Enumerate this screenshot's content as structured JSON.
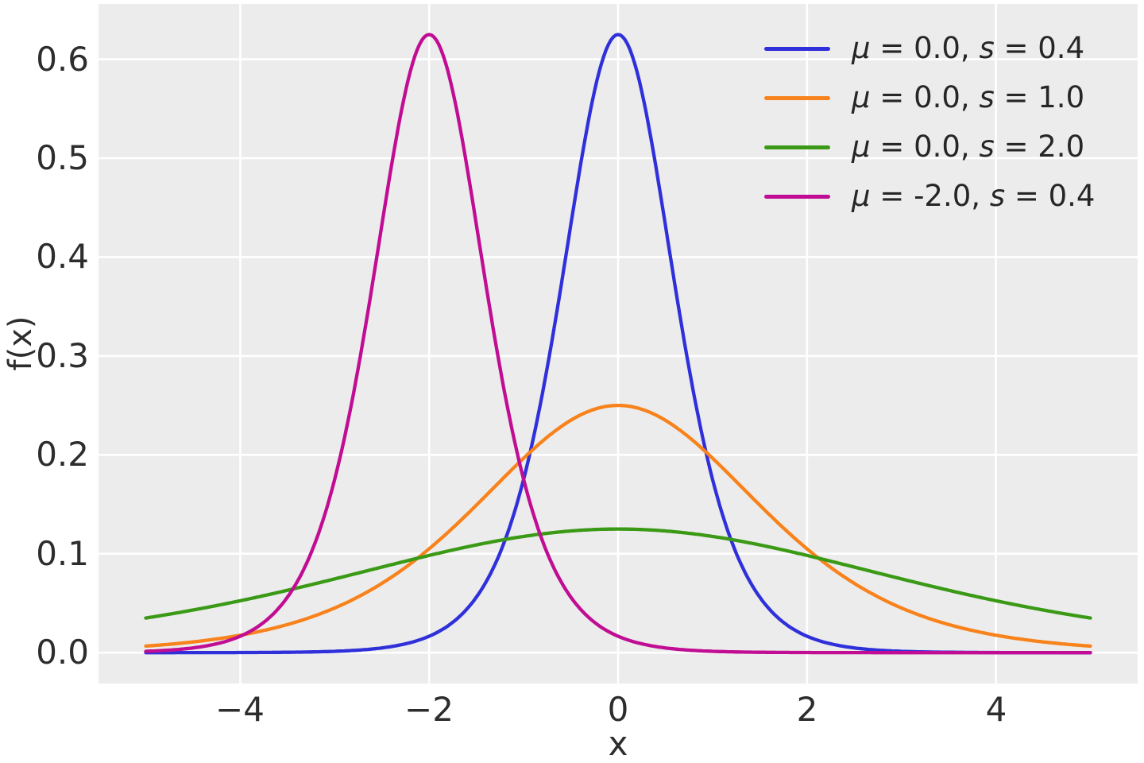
{
  "figure": {
    "background": "#ffffff",
    "axes_background": "#ececec",
    "grid_color": "#ffffff",
    "text_color": "#2d2d2d"
  },
  "chart_data": {
    "type": "line",
    "curve_family": "logistic-distribution-pdf",
    "title": "",
    "xlabel": "x",
    "ylabel": "f(x)",
    "xlim": [
      -5.5,
      5.5
    ],
    "ylim": [
      -0.0312,
      0.6559
    ],
    "x_sample_range": [
      -5,
      5
    ],
    "grid": true,
    "legend_position": "upper right",
    "xticks": [
      {
        "value": -4,
        "label": "−4"
      },
      {
        "value": -2,
        "label": "−2"
      },
      {
        "value": 0,
        "label": "0"
      },
      {
        "value": 2,
        "label": "2"
      },
      {
        "value": 4,
        "label": "4"
      }
    ],
    "yticks": [
      {
        "value": 0.0,
        "label": "0.0"
      },
      {
        "value": 0.1,
        "label": "0.1"
      },
      {
        "value": 0.2,
        "label": "0.2"
      },
      {
        "value": 0.3,
        "label": "0.3"
      },
      {
        "value": 0.4,
        "label": "0.4"
      },
      {
        "value": 0.5,
        "label": "0.5"
      },
      {
        "value": 0.6,
        "label": "0.6"
      }
    ],
    "series": [
      {
        "label": "μ = 0.0, s = 0.4",
        "mu": 0.0,
        "s": 0.4,
        "peak_x": 0.0,
        "peak_y": 0.625,
        "color": "#3030db"
      },
      {
        "label": "μ = 0.0, s = 1.0",
        "mu": 0.0,
        "s": 1.0,
        "peak_x": 0.0,
        "peak_y": 0.25,
        "color": "#f8821b"
      },
      {
        "label": "μ = 0.0, s = 2.0",
        "mu": 0.0,
        "s": 2.0,
        "peak_x": 0.0,
        "peak_y": 0.125,
        "color": "#3a9a15"
      },
      {
        "label": "μ = -2.0, s = 0.4",
        "mu": -2.0,
        "s": 0.4,
        "peak_x": -2.0,
        "peak_y": 0.625,
        "color": "#c00d93"
      }
    ]
  },
  "legend": {
    "items": [
      {
        "parts": [
          {
            "t": "μ",
            "i": true
          },
          {
            "t": " = "
          },
          {
            "t": "0.0"
          },
          {
            "t": ", "
          },
          {
            "t": "s",
            "i": true
          },
          {
            "t": " = "
          },
          {
            "t": "0.4"
          }
        ]
      },
      {
        "parts": [
          {
            "t": "μ",
            "i": true
          },
          {
            "t": " = "
          },
          {
            "t": "0.0"
          },
          {
            "t": ", "
          },
          {
            "t": "s",
            "i": true
          },
          {
            "t": " = "
          },
          {
            "t": "1.0"
          }
        ]
      },
      {
        "parts": [
          {
            "t": "μ",
            "i": true
          },
          {
            "t": " = "
          },
          {
            "t": "0.0"
          },
          {
            "t": ", "
          },
          {
            "t": "s",
            "i": true
          },
          {
            "t": " = "
          },
          {
            "t": "2.0"
          }
        ]
      },
      {
        "parts": [
          {
            "t": "μ",
            "i": true
          },
          {
            "t": " = "
          },
          {
            "t": "-2.0"
          },
          {
            "t": ", "
          },
          {
            "t": "s",
            "i": true
          },
          {
            "t": " = "
          },
          {
            "t": "0.4"
          }
        ]
      }
    ]
  }
}
